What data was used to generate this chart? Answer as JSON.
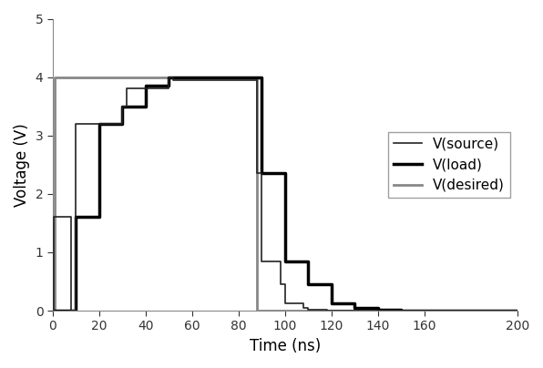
{
  "title": "",
  "xlabel": "Time (ns)",
  "ylabel": "Voltage (V)",
  "xlim": [
    0,
    200
  ],
  "ylim": [
    0,
    5
  ],
  "xticks": [
    0,
    20,
    40,
    60,
    80,
    100,
    120,
    140,
    160,
    200
  ],
  "yticks": [
    0,
    1,
    2,
    3,
    4,
    5
  ],
  "background_color": "#ffffff",
  "legend_loc": "center right",
  "v_desired": {
    "x": [
      0,
      1,
      1,
      88,
      88,
      200
    ],
    "y": [
      0,
      0,
      4,
      4,
      0,
      0
    ],
    "color": "#888888",
    "linewidth": 2.0,
    "label": "V(desired)"
  },
  "v_source": {
    "x": [
      0,
      0.5,
      0.5,
      8,
      8,
      10,
      10,
      30,
      30,
      32,
      32,
      50,
      50,
      52,
      52,
      88,
      88,
      90,
      90,
      98,
      98,
      100,
      100,
      108,
      108,
      110,
      110,
      118,
      118,
      130,
      130,
      148,
      148,
      160,
      160,
      200
    ],
    "y": [
      0,
      0,
      1.6,
      1.6,
      0,
      0,
      3.2,
      3.2,
      3.5,
      3.5,
      3.8,
      3.8,
      4.0,
      4.0,
      3.95,
      3.95,
      2.35,
      2.35,
      0.85,
      0.85,
      0.45,
      0.45,
      0.12,
      0.12,
      0.05,
      0.05,
      0.02,
      0.02,
      0,
      0,
      0,
      0,
      0,
      0,
      0,
      0
    ],
    "color": "#222222",
    "linewidth": 1.2,
    "label": "V(source)"
  },
  "v_load": {
    "x": [
      0,
      10,
      10,
      20,
      20,
      30,
      30,
      40,
      40,
      50,
      50,
      90,
      90,
      100,
      100,
      110,
      110,
      120,
      120,
      130,
      130,
      140,
      140,
      150,
      150,
      165,
      165,
      200
    ],
    "y": [
      0,
      0,
      1.6,
      1.6,
      3.2,
      3.2,
      3.5,
      3.5,
      3.85,
      3.85,
      4.0,
      4.0,
      2.35,
      2.35,
      0.85,
      0.85,
      0.45,
      0.45,
      0.12,
      0.12,
      0.05,
      0.05,
      0.02,
      0.02,
      0.0,
      0.0,
      0,
      0
    ],
    "color": "#000000",
    "linewidth": 2.5,
    "label": "V(load)"
  },
  "legend_fontsize": 11,
  "axis_label_fontsize": 12,
  "tick_fontsize": 10
}
